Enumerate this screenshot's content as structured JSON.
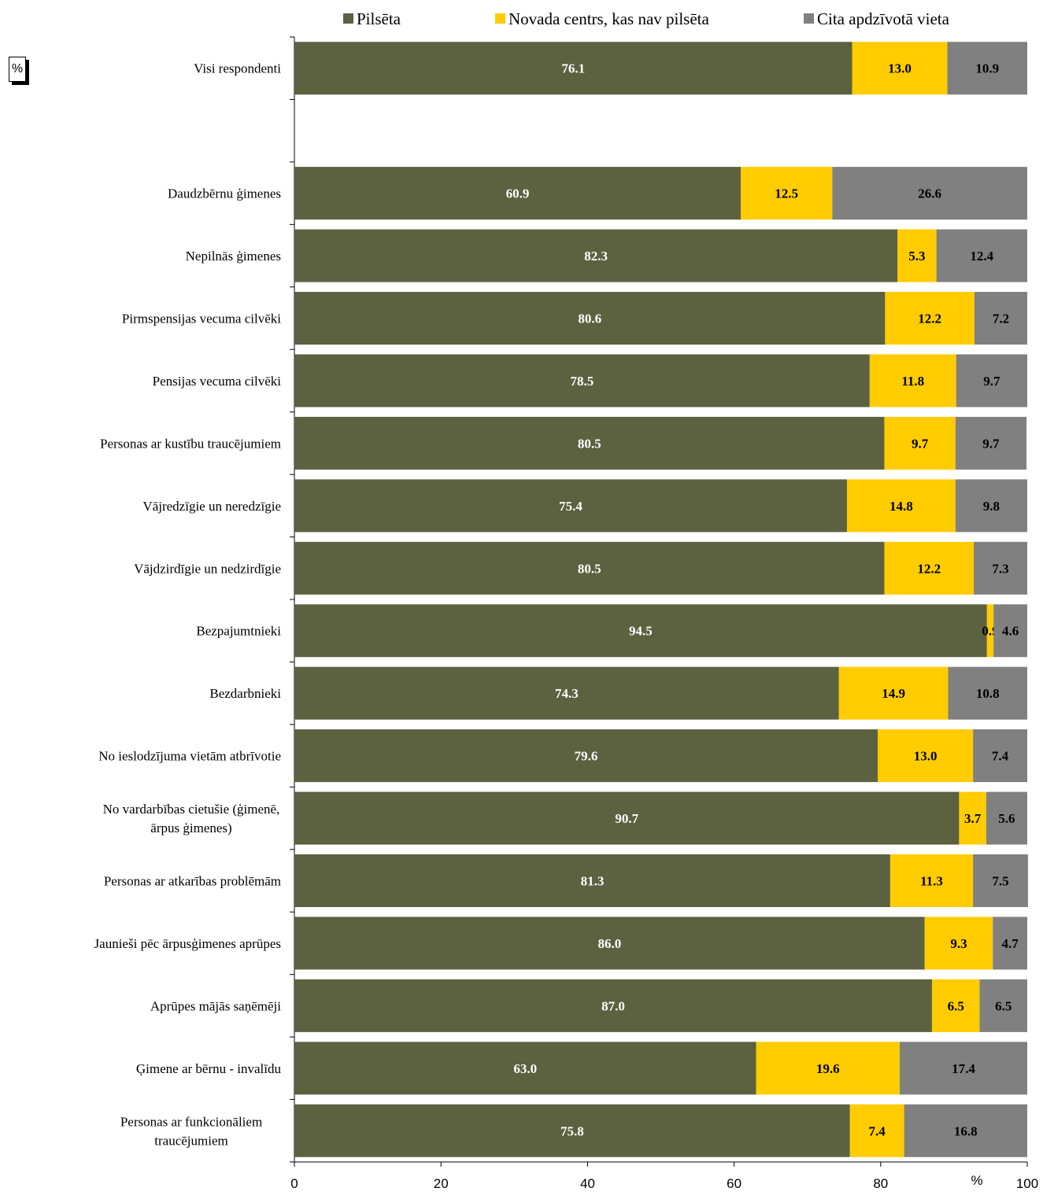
{
  "corner_badge": "%",
  "chart_data": {
    "type": "bar",
    "orientation": "horizontal",
    "stacked": true,
    "xlabel": "%",
    "xlim": [
      0,
      100
    ],
    "xticks": [
      0,
      20,
      40,
      60,
      80,
      100
    ],
    "legend_position": "top",
    "categories": [
      "Visi respondenti",
      "",
      "Daudzbērnu ģimenes",
      "Nepilnās ģimenes",
      "Pirmspensijas vecuma cilvēki",
      "Pensijas vecuma cilvēki",
      "Personas ar kustību traucējumiem",
      "Vājredzīgie un neredzīgie",
      "Vājdzirdīgie un nedzirdīgie",
      "Bezpajumtnieki",
      "Bezdarbnieki",
      "No ieslodzījuma vietām atbrīvotie",
      "No vardarbības cietušie (ģimenē, ārpus ģimenes)",
      "Personas ar atkarības problēmām",
      "Jaunieši pēc ārpusģimenes aprūpes",
      "Aprūpes mājās saņēmēji",
      "Ģimene ar bērnu - invalīdu",
      "Personas ar funkcionāliem traucējumiem"
    ],
    "series": [
      {
        "name": "Pilsēta",
        "color": "#5c6140",
        "label_color": "#ffffff",
        "values": [
          76.1,
          null,
          60.9,
          82.3,
          80.6,
          78.5,
          80.5,
          75.4,
          80.5,
          94.5,
          74.3,
          79.6,
          90.7,
          81.3,
          86.0,
          87.0,
          63.0,
          75.8
        ]
      },
      {
        "name": "Novada centrs, kas nav pilsēta",
        "color": "#ffcc00",
        "label_color": "#000000",
        "values": [
          13.0,
          null,
          12.5,
          5.3,
          12.2,
          11.8,
          9.7,
          14.8,
          12.2,
          0.9,
          14.9,
          13.0,
          3.7,
          11.3,
          9.3,
          6.5,
          19.6,
          7.4
        ]
      },
      {
        "name": "Cita apdzīvotā vieta",
        "color": "#808080",
        "label_color": "#000000",
        "values": [
          10.9,
          null,
          26.6,
          12.4,
          7.2,
          9.7,
          9.7,
          9.8,
          7.3,
          4.6,
          10.8,
          7.4,
          5.6,
          7.5,
          4.7,
          6.5,
          17.4,
          16.8
        ]
      }
    ]
  }
}
